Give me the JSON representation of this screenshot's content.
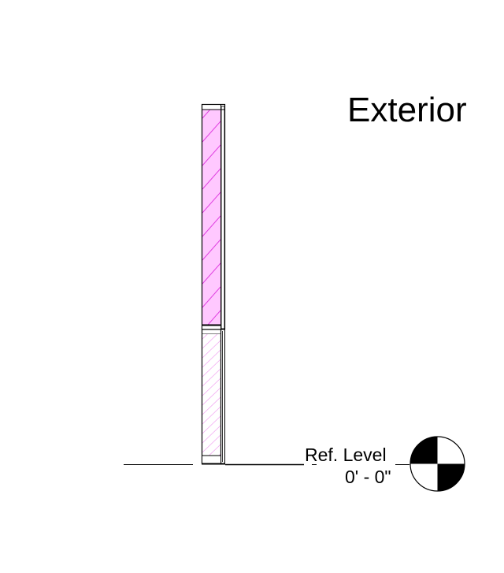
{
  "view": {
    "side_label": "Exterior"
  },
  "level": {
    "name": "Ref. Level",
    "elevation": "0' - 0\""
  },
  "colors": {
    "line": "#000000",
    "glazing_fill": "#ffc8ff",
    "glazing_hatch": "#e040e0",
    "lower_hatch": "#f2a8f2",
    "background": "#ffffff"
  }
}
